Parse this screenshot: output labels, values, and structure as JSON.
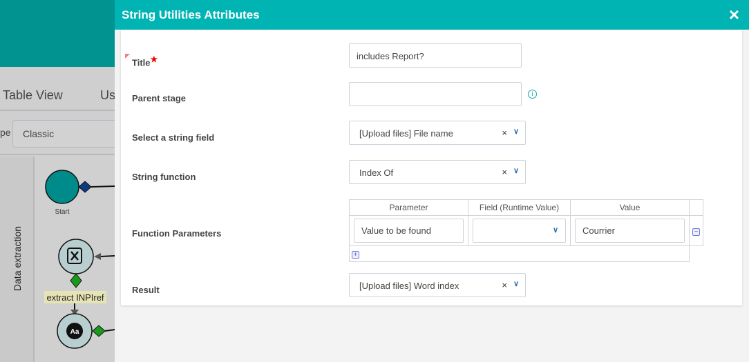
{
  "background": {
    "tabs": [
      "Table View",
      "Us"
    ],
    "type_label_fragment": "pe",
    "type_value": "Classic",
    "lane_label": "Data extraction",
    "nodes": {
      "start": "Start",
      "connector_label": "extract INPIref",
      "node_glyph": "Aa"
    }
  },
  "modal": {
    "title": "String Utilities Attributes",
    "close_icon": "×",
    "fields": {
      "title": {
        "label": "Title",
        "required": "★",
        "value": "includes Report?"
      },
      "parent_stage": {
        "label": "Parent stage",
        "value": "",
        "info_icon": "i"
      },
      "string_field": {
        "label": "Select a string field",
        "value": "[Upload files] File name"
      },
      "string_function": {
        "label": "String function",
        "value": "Index Of"
      },
      "function_parameters": {
        "label": "Function Parameters",
        "headers": [
          "Parameter",
          "Field (Runtime Value)",
          "Value"
        ],
        "rows": [
          {
            "parameter": "Value to be found",
            "field": "",
            "value": "Courrier"
          }
        ]
      },
      "result": {
        "label": "Result",
        "value": "[Upload files] Word index"
      }
    }
  },
  "colors": {
    "modal_header": "#00b4b4",
    "app_header": "#009390",
    "start_node": "#008b8b"
  }
}
